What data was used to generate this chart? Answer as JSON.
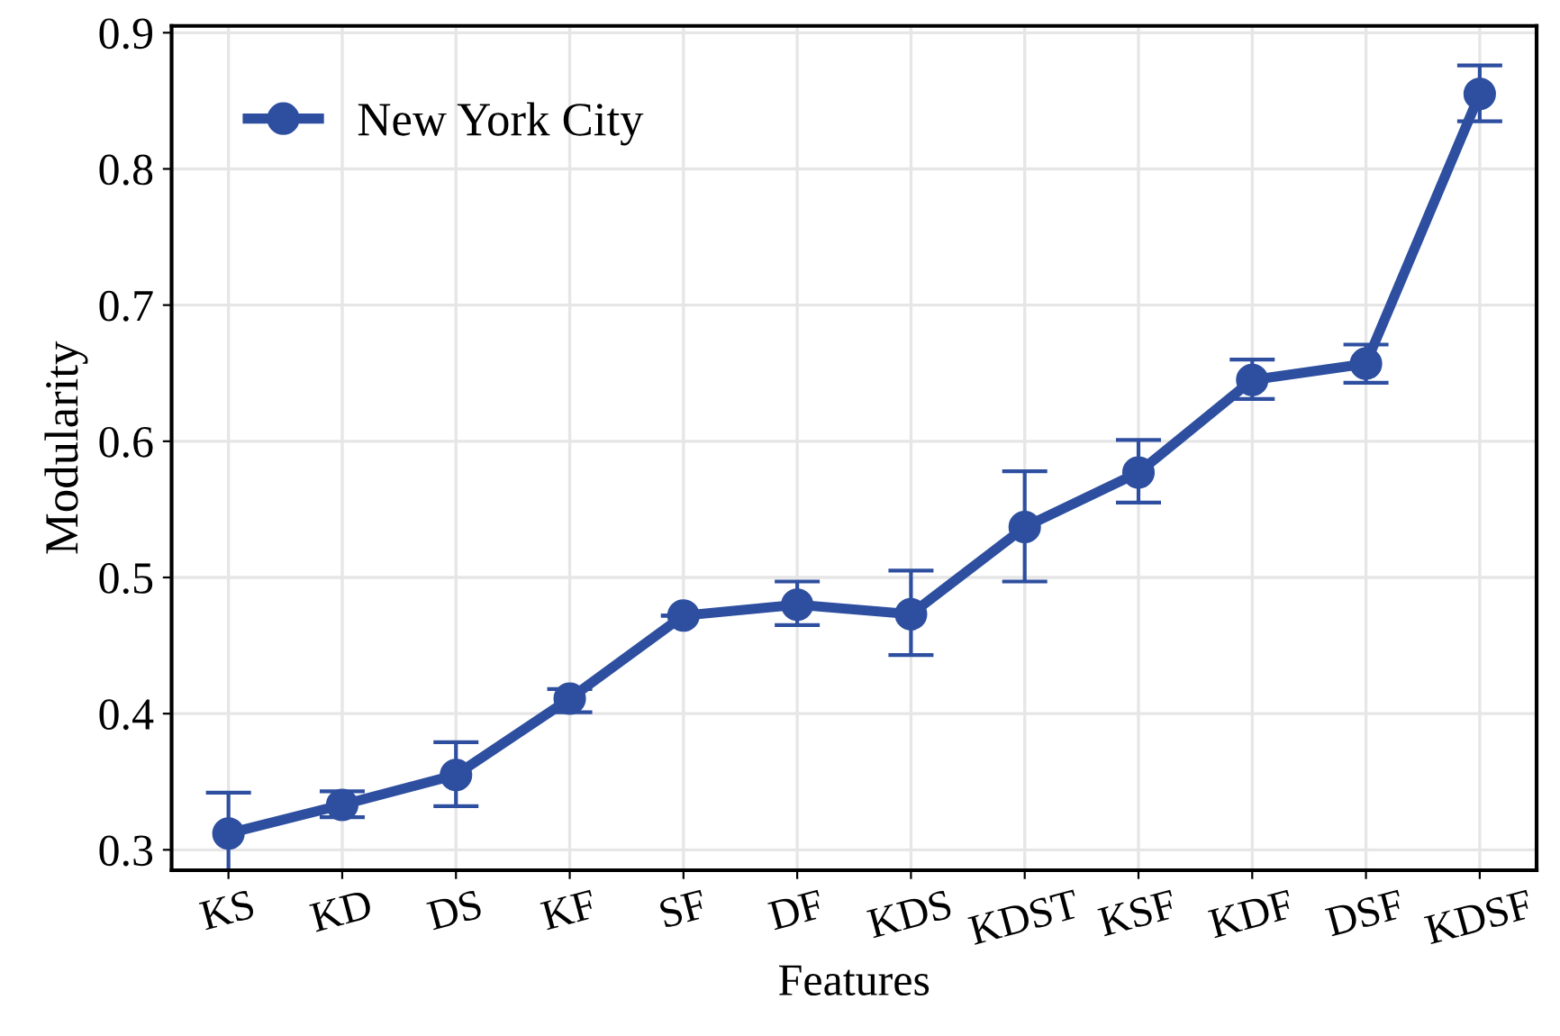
{
  "chart_data": {
    "type": "line",
    "xlabel": "Features",
    "ylabel": "Modularity",
    "categories": [
      "KS",
      "KD",
      "DS",
      "KF",
      "SF",
      "DF",
      "KDS",
      "KDST",
      "KSF",
      "KDF",
      "DSF",
      "KDSF"
    ],
    "series": [
      {
        "name": "New York City",
        "color": "#2e4fa0",
        "values": [
          0.312,
          0.333,
          0.355,
          0.411,
          0.472,
          0.48,
          0.473,
          0.537,
          0.577,
          0.645,
          0.657,
          0.855
        ],
        "errors": [
          [
            0.282,
            0.342
          ],
          [
            0.324,
            0.343
          ],
          [
            0.332,
            0.379
          ],
          [
            0.401,
            0.418
          ],
          null,
          [
            0.465,
            0.497
          ],
          [
            0.443,
            0.505
          ],
          [
            0.497,
            0.578
          ],
          [
            0.555,
            0.601
          ],
          [
            0.631,
            0.66
          ],
          [
            0.643,
            0.671
          ],
          [
            0.835,
            0.876
          ]
        ]
      }
    ],
    "ylim": [
      0.285,
      0.905
    ],
    "yticks": [
      0.3,
      0.4,
      0.5,
      0.6,
      0.7,
      0.8,
      0.9
    ],
    "grid": true,
    "legend": "top left",
    "marker": "circle",
    "line_style": "solid"
  }
}
